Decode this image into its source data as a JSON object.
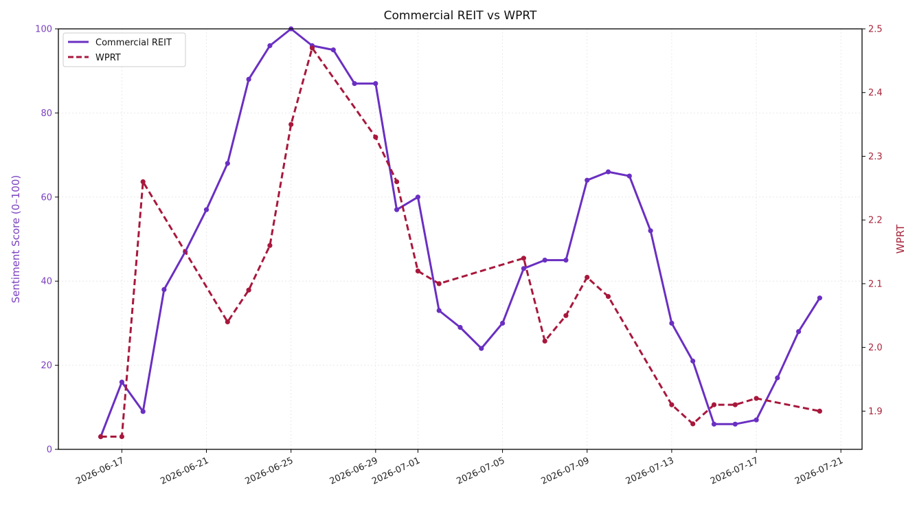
{
  "chart_data": {
    "type": "line",
    "title": "Commercial REIT vs WPRT",
    "ylabel_left": "Sentiment Score (0–100)",
    "ylabel_right": "WPRT",
    "ylim_left": [
      0,
      100
    ],
    "ylim_right": [
      1.84,
      2.5
    ],
    "xlim": [
      "2026-06-14",
      "2026-07-22"
    ],
    "yticks_left": [
      0,
      20,
      40,
      60,
      80,
      100
    ],
    "yticks_right": [
      1.9,
      2.0,
      2.1,
      2.2,
      2.3,
      2.4,
      2.5
    ],
    "xticks": [
      "2026-06-17",
      "2026-06-21",
      "2026-06-25",
      "2026-06-29",
      "2026-07-01",
      "2026-07-05",
      "2026-07-09",
      "2026-07-13",
      "2026-07-17",
      "2026-07-21"
    ],
    "grid": true,
    "legend_position": "top-left",
    "colors": {
      "left": "#7a3fbf",
      "right": "#a8243a"
    },
    "series": [
      {
        "name": "Commercial REIT",
        "axis": "left",
        "color": "#6a2fc2",
        "style": "solid",
        "x": [
          "2026-06-16",
          "2026-06-17",
          "2026-06-18",
          "2026-06-19",
          "2026-06-20",
          "2026-06-21",
          "2026-06-22",
          "2026-06-23",
          "2026-06-24",
          "2026-06-25",
          "2026-06-26",
          "2026-06-27",
          "2026-06-28",
          "2026-06-29",
          "2026-06-30",
          "2026-07-01",
          "2026-07-02",
          "2026-07-03",
          "2026-07-04",
          "2026-07-05",
          "2026-07-06",
          "2026-07-07",
          "2026-07-08",
          "2026-07-09",
          "2026-07-10",
          "2026-07-11",
          "2026-07-12",
          "2026-07-13",
          "2026-07-14",
          "2026-07-15",
          "2026-07-16",
          "2026-07-17",
          "2026-07-18",
          "2026-07-19",
          "2026-07-20"
        ],
        "values": [
          3,
          16,
          9,
          38,
          47,
          57,
          68,
          88,
          96,
          100,
          96,
          95,
          87,
          87,
          57,
          60,
          33,
          29,
          24,
          30,
          43,
          45,
          45,
          64,
          66,
          65,
          52,
          30,
          21,
          6,
          6,
          7,
          17,
          28,
          36
        ]
      },
      {
        "name": "WPRT",
        "axis": "right",
        "color": "#a8183c",
        "style": "dashed",
        "x": [
          "2026-06-16",
          "2026-06-17",
          "2026-06-18",
          "2026-06-22",
          "2026-06-23",
          "2026-06-24",
          "2026-06-25",
          "2026-06-26",
          "2026-06-29",
          "2026-06-30",
          "2026-07-01",
          "2026-07-02",
          "2026-07-06",
          "2026-07-07",
          "2026-07-08",
          "2026-07-09",
          "2026-07-10",
          "2026-07-13",
          "2026-07-14",
          "2026-07-15",
          "2026-07-16",
          "2026-07-17",
          "2026-07-20"
        ],
        "values": [
          1.86,
          1.86,
          2.26,
          2.04,
          2.09,
          2.16,
          2.35,
          2.47,
          2.33,
          2.26,
          2.12,
          2.1,
          2.14,
          2.01,
          2.05,
          2.11,
          2.08,
          1.91,
          1.88,
          1.91,
          1.91,
          1.92,
          1.9
        ]
      }
    ]
  }
}
